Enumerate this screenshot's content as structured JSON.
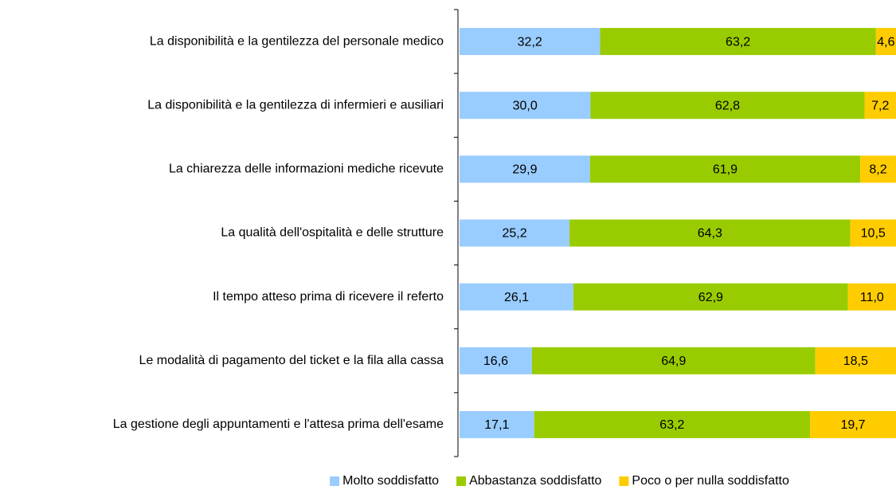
{
  "chart_data": {
    "type": "stacked-bar-horizontal",
    "categories": [
      "La disponibilità e la gentilezza del personale medico",
      "La disponibilità e la gentilezza di infermieri e ausiliari",
      "La chiarezza delle informazioni mediche ricevute",
      "La qualità dell'ospitalità e delle strutture",
      "Il tempo atteso prima di ricevere il referto",
      "Le modalità di pagamento del ticket e la fila alla cassa",
      "La gestione degli appuntamenti e l'attesa prima dell'esame"
    ],
    "series": [
      {
        "name": "Molto soddisfatto",
        "color": "#99ccff",
        "values": [
          32.2,
          30.0,
          29.9,
          25.2,
          26.1,
          16.6,
          17.1
        ],
        "value_labels": [
          "32,2",
          "30,0",
          "29,9",
          "25,2",
          "26,1",
          "16,6",
          "17,1"
        ]
      },
      {
        "name": "Abbastanza soddisfatto",
        "color": "#99cc00",
        "values": [
          63.2,
          62.8,
          61.9,
          64.3,
          62.9,
          64.9,
          63.2
        ],
        "value_labels": [
          "63,2",
          "62,8",
          "61,9",
          "64,3",
          "62,9",
          "64,9",
          "63,2"
        ]
      },
      {
        "name": "Poco o per nulla soddisfatto",
        "color": "#ffcc00",
        "values": [
          4.6,
          7.2,
          8.2,
          10.5,
          11.0,
          18.5,
          19.7
        ],
        "value_labels": [
          "4,6",
          "7,2",
          "8,2",
          "10,5",
          "11,0",
          "18,5",
          "19,7"
        ]
      }
    ],
    "legend": "bottom"
  }
}
